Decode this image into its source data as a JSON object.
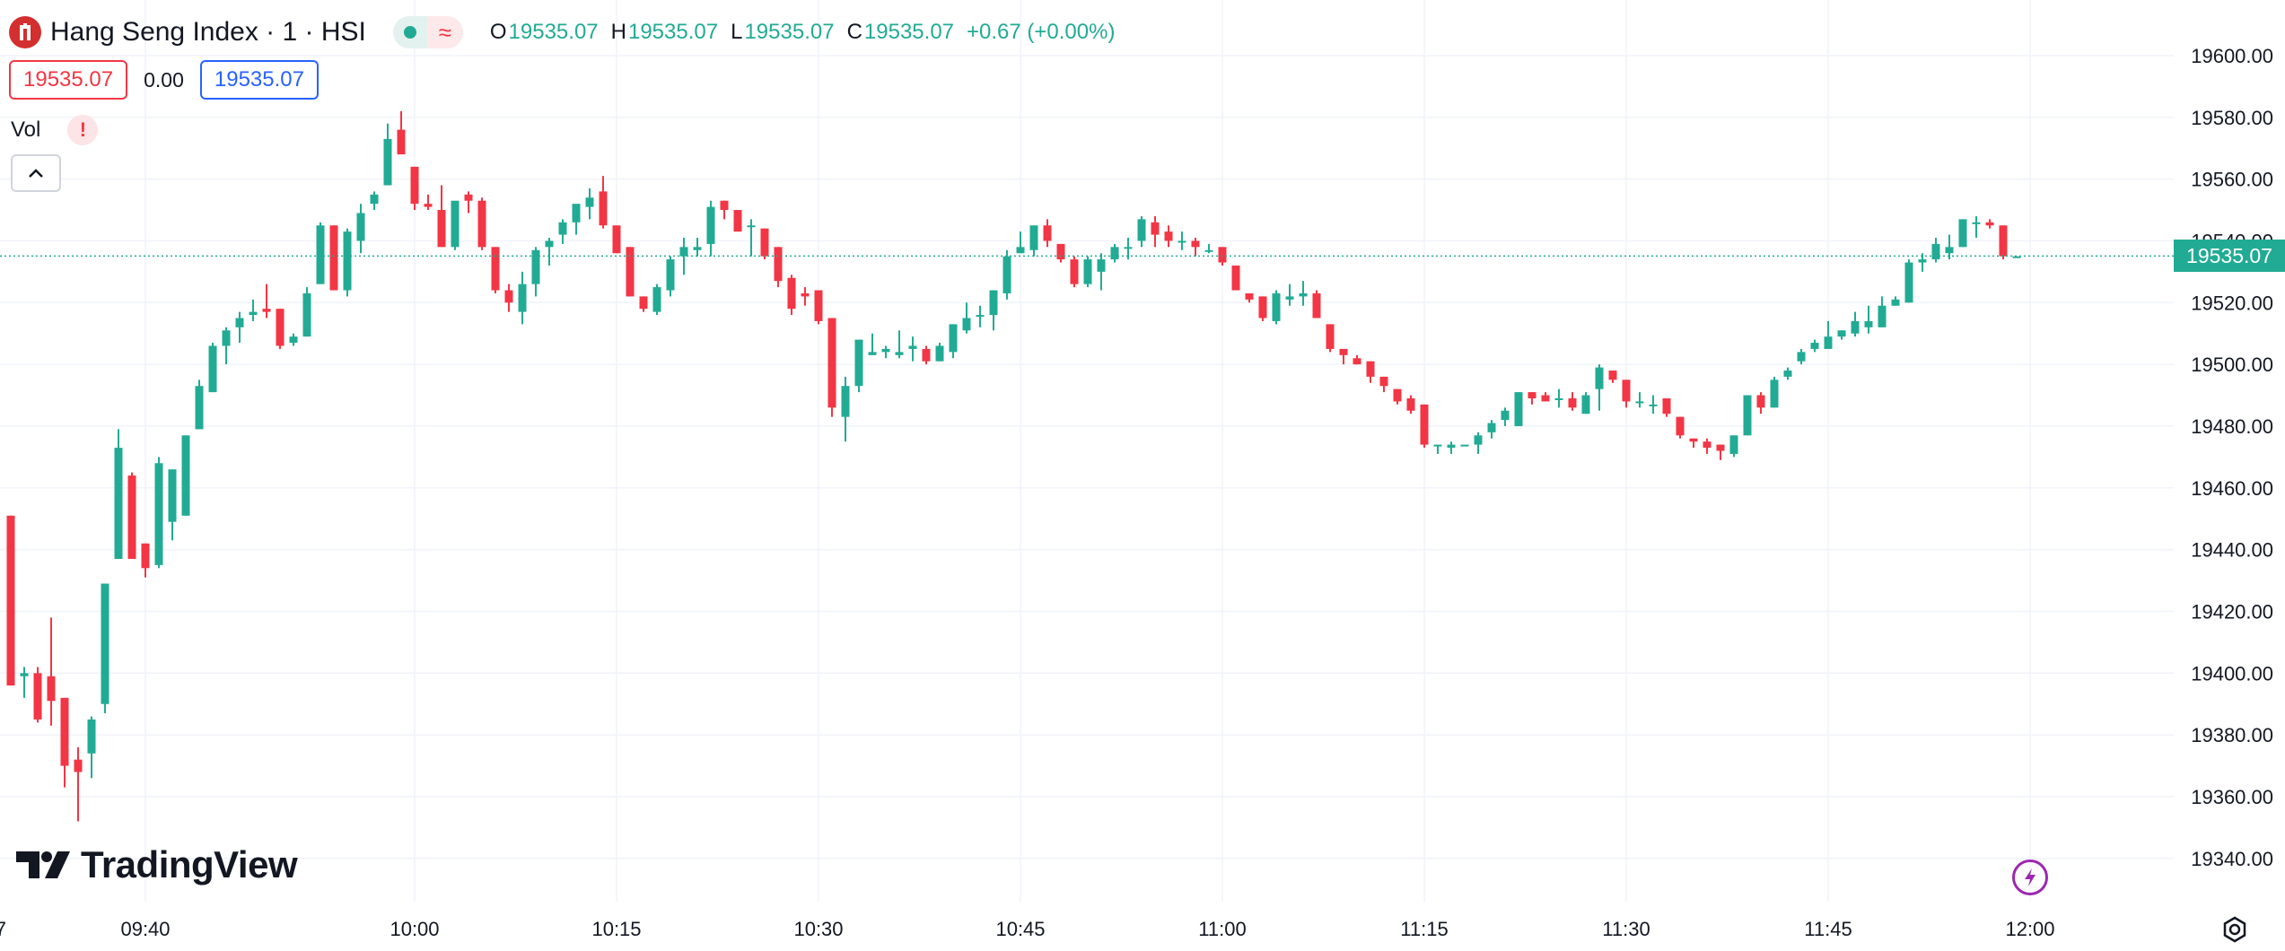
{
  "symbol": {
    "title": "Hang Seng Index · 1 · HSI"
  },
  "ohlc": {
    "o_label": "O",
    "o_value": "19535.07",
    "h_label": "H",
    "h_value": "19535.07",
    "l_label": "L",
    "l_value": "19535.07",
    "c_label": "C",
    "c_value": "19535.07",
    "change": "+0.67 (+0.00%)"
  },
  "quote": {
    "bid": "19535.07",
    "spread": "0.00",
    "ask": "19535.07"
  },
  "volume": {
    "label": "Vol"
  },
  "last_price_tag": "19535.07",
  "brand": {
    "name": "TradingView"
  },
  "colors": {
    "up": "#22ab94",
    "down": "#f23645",
    "ask": "#2962ff",
    "grid": "#f0f3fa",
    "text": "#131722"
  },
  "chart_data": {
    "type": "candlestick",
    "symbol": "HSI",
    "interval": "1",
    "x_tick_labels": [
      "09:40",
      "10:00",
      "10:15",
      "10:30",
      "10:45",
      "11:00",
      "11:15",
      "11:30",
      "11:45",
      "12:00"
    ],
    "x_tick_cut_label": "7",
    "y_tick_labels": [
      "19340.00",
      "19360.00",
      "19380.00",
      "19400.00",
      "19420.00",
      "19440.00",
      "19460.00",
      "19480.00",
      "19500.00",
      "19520.00",
      "19540.00",
      "19560.00",
      "19580.00",
      "19600.00"
    ],
    "ylim": [
      19326,
      19618
    ],
    "last_price": 19535.07,
    "first_slot_time": "09:30",
    "grid": true,
    "candles": [
      {
        "o": 19451,
        "h": 19451,
        "l": 19396,
        "c": 19396
      },
      {
        "o": 19399,
        "h": 19402,
        "l": 19392,
        "c": 19400
      },
      {
        "o": 19400,
        "h": 19402,
        "l": 19384,
        "c": 19385
      },
      {
        "o": 19399,
        "h": 19418,
        "l": 19383,
        "c": 19391
      },
      {
        "o": 19392,
        "h": 19392,
        "l": 19363,
        "c": 19370
      },
      {
        "o": 19372,
        "h": 19376,
        "l": 19352,
        "c": 19368
      },
      {
        "o": 19374,
        "h": 19386,
        "l": 19366,
        "c": 19385
      },
      {
        "o": 19390,
        "h": 19429,
        "l": 19387,
        "c": 19429
      },
      {
        "o": 19437,
        "h": 19479,
        "l": 19437,
        "c": 19473
      },
      {
        "o": 19464,
        "h": 19465,
        "l": 19437,
        "c": 19437
      },
      {
        "o": 19442,
        "h": 19442,
        "l": 19431,
        "c": 19434
      },
      {
        "o": 19435,
        "h": 19470,
        "l": 19434,
        "c": 19468
      },
      {
        "o": 19449,
        "h": 19465,
        "l": 19443,
        "c": 19466
      },
      {
        "o": 19451,
        "h": 19477,
        "l": 19451,
        "c": 19477
      },
      {
        "o": 19479,
        "h": 19495,
        "l": 19479,
        "c": 19493
      },
      {
        "o": 19491,
        "h": 19507,
        "l": 19491,
        "c": 19506
      },
      {
        "o": 19506,
        "h": 19512,
        "l": 19500,
        "c": 19511
      },
      {
        "o": 19512,
        "h": 19517,
        "l": 19507,
        "c": 19515
      },
      {
        "o": 19516,
        "h": 19521,
        "l": 19514,
        "c": 19517
      },
      {
        "o": 19518,
        "h": 19526,
        "l": 19515,
        "c": 19517
      },
      {
        "o": 19518,
        "h": 19518,
        "l": 19505,
        "c": 19506
      },
      {
        "o": 19507,
        "h": 19510,
        "l": 19506,
        "c": 19509
      },
      {
        "o": 19509,
        "h": 19525,
        "l": 19509,
        "c": 19523
      },
      {
        "o": 19526,
        "h": 19546,
        "l": 19526,
        "c": 19545
      },
      {
        "o": 19545,
        "h": 19545,
        "l": 19524,
        "c": 19524
      },
      {
        "o": 19524,
        "h": 19544,
        "l": 19522,
        "c": 19543
      },
      {
        "o": 19540,
        "h": 19552,
        "l": 19536,
        "c": 19549
      },
      {
        "o": 19552,
        "h": 19556,
        "l": 19550,
        "c": 19555
      },
      {
        "o": 19558,
        "h": 19578,
        "l": 19558,
        "c": 19573
      },
      {
        "o": 19576,
        "h": 19582,
        "l": 19569,
        "c": 19568
      },
      {
        "o": 19564,
        "h": 19564,
        "l": 19550,
        "c": 19552
      },
      {
        "o": 19552,
        "h": 19555,
        "l": 19550,
        "c": 19551
      },
      {
        "o": 19550,
        "h": 19558,
        "l": 19538,
        "c": 19538
      },
      {
        "o": 19538,
        "h": 19552,
        "l": 19537,
        "c": 19553
      },
      {
        "o": 19555,
        "h": 19556,
        "l": 19549,
        "c": 19553
      },
      {
        "o": 19553,
        "h": 19554,
        "l": 19537,
        "c": 19538
      },
      {
        "o": 19538,
        "h": 19538,
        "l": 19523,
        "c": 19524
      },
      {
        "o": 19524,
        "h": 19526,
        "l": 19517,
        "c": 19520
      },
      {
        "o": 19517,
        "h": 19530,
        "l": 19513,
        "c": 19526
      },
      {
        "o": 19526,
        "h": 19538,
        "l": 19522,
        "c": 19537
      },
      {
        "o": 19538,
        "h": 19541,
        "l": 19532,
        "c": 19540
      },
      {
        "o": 19542,
        "h": 19547,
        "l": 19539,
        "c": 19546
      },
      {
        "o": 19546,
        "h": 19551,
        "l": 19542,
        "c": 19552
      },
      {
        "o": 19551,
        "h": 19557,
        "l": 19547,
        "c": 19554
      },
      {
        "o": 19556,
        "h": 19561,
        "l": 19544,
        "c": 19545
      },
      {
        "o": 19545,
        "h": 19545,
        "l": 19536,
        "c": 19536
      },
      {
        "o": 19538,
        "h": 19538,
        "l": 19522,
        "c": 19522
      },
      {
        "o": 19522,
        "h": 19522,
        "l": 19517,
        "c": 19518
      },
      {
        "o": 19517,
        "h": 19526,
        "l": 19516,
        "c": 19525
      },
      {
        "o": 19524,
        "h": 19535,
        "l": 19522,
        "c": 19534
      },
      {
        "o": 19535,
        "h": 19541,
        "l": 19529,
        "c": 19538
      },
      {
        "o": 19537,
        "h": 19541,
        "l": 19535,
        "c": 19538
      },
      {
        "o": 19539,
        "h": 19553,
        "l": 19535,
        "c": 19551
      },
      {
        "o": 19553,
        "h": 19553,
        "l": 19547,
        "c": 19550
      },
      {
        "o": 19550,
        "h": 19550,
        "l": 19543,
        "c": 19543
      },
      {
        "o": 19545,
        "h": 19547,
        "l": 19535,
        "c": 19545
      },
      {
        "o": 19544,
        "h": 19544,
        "l": 19534,
        "c": 19535
      },
      {
        "o": 19538,
        "h": 19538,
        "l": 19525,
        "c": 19527
      },
      {
        "o": 19528,
        "h": 19529,
        "l": 19516,
        "c": 19518
      },
      {
        "o": 19523,
        "h": 19525,
        "l": 19519,
        "c": 19522
      },
      {
        "o": 19524,
        "h": 19524,
        "l": 19513,
        "c": 19514
      },
      {
        "o": 19515,
        "h": 19515,
        "l": 19483,
        "c": 19486
      },
      {
        "o": 19483,
        "h": 19496,
        "l": 19475,
        "c": 19493
      },
      {
        "o": 19493,
        "h": 19507,
        "l": 19491,
        "c": 19508
      },
      {
        "o": 19503,
        "h": 19510,
        "l": 19503,
        "c": 19504
      },
      {
        "o": 19504,
        "h": 19506,
        "l": 19502,
        "c": 19505
      },
      {
        "o": 19503,
        "h": 19511,
        "l": 19502,
        "c": 19504
      },
      {
        "o": 19505,
        "h": 19509,
        "l": 19501,
        "c": 19506
      },
      {
        "o": 19505,
        "h": 19506,
        "l": 19500,
        "c": 19501
      },
      {
        "o": 19501,
        "h": 19507,
        "l": 19501,
        "c": 19506
      },
      {
        "o": 19504,
        "h": 19513,
        "l": 19502,
        "c": 19513
      },
      {
        "o": 19511,
        "h": 19520,
        "l": 19510,
        "c": 19515
      },
      {
        "o": 19516,
        "h": 19519,
        "l": 19512,
        "c": 19516
      },
      {
        "o": 19516,
        "h": 19524,
        "l": 19511,
        "c": 19524
      },
      {
        "o": 19523,
        "h": 19537,
        "l": 19521,
        "c": 19535
      },
      {
        "o": 19536,
        "h": 19543,
        "l": 19536,
        "c": 19538
      },
      {
        "o": 19537,
        "h": 19545,
        "l": 19535,
        "c": 19545
      },
      {
        "o": 19545,
        "h": 19547,
        "l": 19538,
        "c": 19540
      },
      {
        "o": 19539,
        "h": 19539,
        "l": 19533,
        "c": 19534
      },
      {
        "o": 19534,
        "h": 19535,
        "l": 19525,
        "c": 19526
      },
      {
        "o": 19526,
        "h": 19535,
        "l": 19525,
        "c": 19534
      },
      {
        "o": 19530,
        "h": 19536,
        "l": 19524,
        "c": 19534
      },
      {
        "o": 19534,
        "h": 19539,
        "l": 19533,
        "c": 19538
      },
      {
        "o": 19538,
        "h": 19541,
        "l": 19534,
        "c": 19538
      },
      {
        "o": 19540,
        "h": 19548,
        "l": 19538,
        "c": 19547
      },
      {
        "o": 19546,
        "h": 19548,
        "l": 19538,
        "c": 19542
      },
      {
        "o": 19543,
        "h": 19545,
        "l": 19538,
        "c": 19540
      },
      {
        "o": 19540,
        "h": 19543,
        "l": 19537,
        "c": 19540
      },
      {
        "o": 19540,
        "h": 19541,
        "l": 19535,
        "c": 19538
      },
      {
        "o": 19537,
        "h": 19539,
        "l": 19536,
        "c": 19537
      },
      {
        "o": 19538,
        "h": 19538,
        "l": 19532,
        "c": 19533
      },
      {
        "o": 19532,
        "h": 19532,
        "l": 19524,
        "c": 19524
      },
      {
        "o": 19523,
        "h": 19523,
        "l": 19520,
        "c": 19521
      },
      {
        "o": 19522,
        "h": 19522,
        "l": 19514,
        "c": 19515
      },
      {
        "o": 19514,
        "h": 19524,
        "l": 19513,
        "c": 19523
      },
      {
        "o": 19521,
        "h": 19526,
        "l": 19519,
        "c": 19522
      },
      {
        "o": 19522,
        "h": 19527,
        "l": 19519,
        "c": 19523
      },
      {
        "o": 19523,
        "h": 19524,
        "l": 19515,
        "c": 19515
      },
      {
        "o": 19513,
        "h": 19513,
        "l": 19504,
        "c": 19505
      },
      {
        "o": 19505,
        "h": 19505,
        "l": 19500,
        "c": 19503
      },
      {
        "o": 19502,
        "h": 19503,
        "l": 19500,
        "c": 19500
      },
      {
        "o": 19501,
        "h": 19501,
        "l": 19494,
        "c": 19496
      },
      {
        "o": 19496,
        "h": 19496,
        "l": 19491,
        "c": 19493
      },
      {
        "o": 19492,
        "h": 19492,
        "l": 19487,
        "c": 19488
      },
      {
        "o": 19489,
        "h": 19490,
        "l": 19484,
        "c": 19485
      },
      {
        "o": 19487,
        "h": 19487,
        "l": 19473,
        "c": 19474
      },
      {
        "o": 19474,
        "h": 19474,
        "l": 19471,
        "c": 19474
      },
      {
        "o": 19473,
        "h": 19475,
        "l": 19471,
        "c": 19474
      },
      {
        "o": 19474,
        "h": 19474,
        "l": 19474,
        "c": 19474
      },
      {
        "o": 19474,
        "h": 19478,
        "l": 19471,
        "c": 19477
      },
      {
        "o": 19478,
        "h": 19482,
        "l": 19476,
        "c": 19481
      },
      {
        "o": 19482,
        "h": 19486,
        "l": 19480,
        "c": 19485
      },
      {
        "o": 19480,
        "h": 19491,
        "l": 19480,
        "c": 19491
      },
      {
        "o": 19491,
        "h": 19491,
        "l": 19487,
        "c": 19489
      },
      {
        "o": 19490,
        "h": 19491,
        "l": 19488,
        "c": 19488
      },
      {
        "o": 19489,
        "h": 19492,
        "l": 19486,
        "c": 19489
      },
      {
        "o": 19489,
        "h": 19491,
        "l": 19485,
        "c": 19486
      },
      {
        "o": 19484,
        "h": 19491,
        "l": 19484,
        "c": 19490
      },
      {
        "o": 19492,
        "h": 19500,
        "l": 19485,
        "c": 19499
      },
      {
        "o": 19498,
        "h": 19498,
        "l": 19494,
        "c": 19495
      },
      {
        "o": 19495,
        "h": 19495,
        "l": 19486,
        "c": 19488
      },
      {
        "o": 19488,
        "h": 19491,
        "l": 19486,
        "c": 19488
      },
      {
        "o": 19487,
        "h": 19490,
        "l": 19484,
        "c": 19487
      },
      {
        "o": 19489,
        "h": 19489,
        "l": 19483,
        "c": 19484
      },
      {
        "o": 19483,
        "h": 19483,
        "l": 19476,
        "c": 19477
      },
      {
        "o": 19476,
        "h": 19476,
        "l": 19473,
        "c": 19475
      },
      {
        "o": 19475,
        "h": 19476,
        "l": 19471,
        "c": 19473
      },
      {
        "o": 19474,
        "h": 19474,
        "l": 19469,
        "c": 19472
      },
      {
        "o": 19471,
        "h": 19477,
        "l": 19470,
        "c": 19477
      },
      {
        "o": 19477,
        "h": 19490,
        "l": 19477,
        "c": 19490
      },
      {
        "o": 19490,
        "h": 19491,
        "l": 19484,
        "c": 19486
      },
      {
        "o": 19486,
        "h": 19496,
        "l": 19486,
        "c": 19495
      },
      {
        "o": 19496,
        "h": 19499,
        "l": 19495,
        "c": 19498
      },
      {
        "o": 19501,
        "h": 19505,
        "l": 19500,
        "c": 19504
      },
      {
        "o": 19505,
        "h": 19508,
        "l": 19504,
        "c": 19507
      },
      {
        "o": 19505,
        "h": 19514,
        "l": 19505,
        "c": 19509
      },
      {
        "o": 19509,
        "h": 19511,
        "l": 19508,
        "c": 19511
      },
      {
        "o": 19510,
        "h": 19517,
        "l": 19509,
        "c": 19514
      },
      {
        "o": 19512,
        "h": 19519,
        "l": 19510,
        "c": 19514
      },
      {
        "o": 19512,
        "h": 19522,
        "l": 19512,
        "c": 19519
      },
      {
        "o": 19519,
        "h": 19522,
        "l": 19519,
        "c": 19521
      },
      {
        "o": 19520,
        "h": 19534,
        "l": 19520,
        "c": 19533
      },
      {
        "o": 19533,
        "h": 19536,
        "l": 19530,
        "c": 19534
      },
      {
        "o": 19534,
        "h": 19541,
        "l": 19533,
        "c": 19539
      },
      {
        "o": 19536,
        "h": 19542,
        "l": 19534,
        "c": 19538
      },
      {
        "o": 19538,
        "h": 19547,
        "l": 19538,
        "c": 19547
      },
      {
        "o": 19546,
        "h": 19548,
        "l": 19541,
        "c": 19546
      },
      {
        "o": 19546,
        "h": 19547,
        "l": 19544,
        "c": 19545
      },
      {
        "o": 19545,
        "h": 19545,
        "l": 19534,
        "c": 19535
      },
      {
        "o": 19535,
        "h": 19535,
        "l": 19535,
        "c": 19535
      }
    ]
  }
}
